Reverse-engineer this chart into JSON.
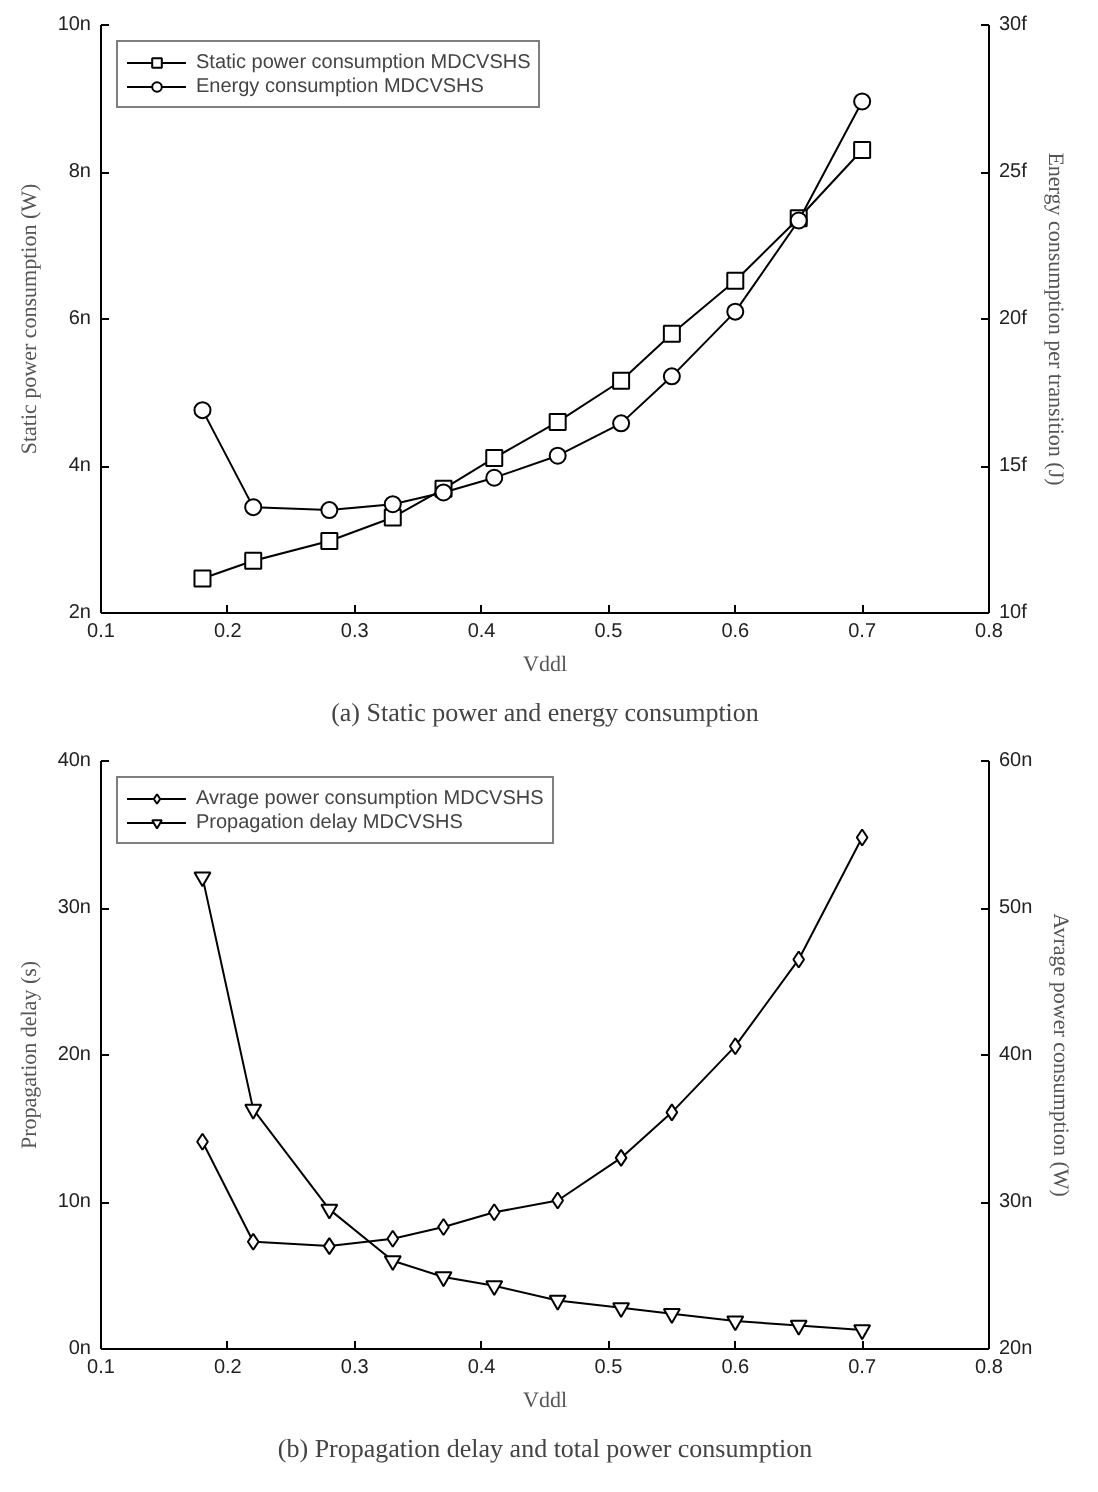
{
  "chart_data": [
    {
      "type": "line",
      "xlabel": "Vddl",
      "ylabel": "Static power consumption (W)",
      "y2label": "Energy consumption per transition (J)",
      "annotations": [
        "(a) Static power and energy consumption"
      ],
      "legend": "top left",
      "grid": false,
      "line_style": "solid",
      "xlim": [
        0.1,
        0.8
      ],
      "xticks": [
        0.1,
        0.2,
        0.3,
        0.4,
        0.5,
        0.6,
        0.7,
        0.8
      ],
      "ylim": [
        2,
        10
      ],
      "yticks": [
        {
          "value": 2,
          "label": "2n"
        },
        {
          "value": 4,
          "label": "4n"
        },
        {
          "value": 6,
          "label": "6n"
        },
        {
          "value": 8,
          "label": "8n"
        },
        {
          "value": 10,
          "label": "10n"
        }
      ],
      "y2lim": [
        10,
        30
      ],
      "y2ticks": [
        {
          "value": 10,
          "label": "10f"
        },
        {
          "value": 15,
          "label": "15f"
        },
        {
          "value": 20,
          "label": "20f"
        },
        {
          "value": 25,
          "label": "25f"
        },
        {
          "value": 30,
          "label": "30f"
        }
      ],
      "x": [
        0.18,
        0.22,
        0.28,
        0.33,
        0.37,
        0.41,
        0.46,
        0.51,
        0.55,
        0.6,
        0.65,
        0.7
      ],
      "series": [
        {
          "name": "Static power consumption MDCVSHS",
          "color": "#000000",
          "marker": "square",
          "values": [
            2.47,
            2.71,
            2.98,
            3.3,
            3.69,
            4.11,
            4.6,
            5.16,
            5.8,
            6.52,
            7.37,
            8.3
          ]
        },
        {
          "name": "Energy consumption MDCVSHS",
          "color": "#000000",
          "marker": "circle",
          "axis": "y2",
          "values": [
            16.9,
            13.6,
            13.5,
            13.7,
            14.1,
            14.6,
            15.35,
            16.45,
            18.05,
            20.25,
            23.35,
            27.4
          ]
        }
      ]
    },
    {
      "type": "line",
      "xlabel": "Vddl",
      "ylabel": "Propagation delay (s)",
      "y2label": "Avrage power consumption (W)",
      "annotations": [
        "(b) Propagation delay and total power consumption"
      ],
      "legend": "top left",
      "grid": false,
      "line_style": "solid",
      "xlim": [
        0.1,
        0.8
      ],
      "xticks": [
        0.1,
        0.2,
        0.3,
        0.4,
        0.5,
        0.6,
        0.7,
        0.8
      ],
      "ylim": [
        0,
        40
      ],
      "yticks": [
        {
          "value": 0,
          "label": "0n"
        },
        {
          "value": 10,
          "label": "10n"
        },
        {
          "value": 20,
          "label": "20n"
        },
        {
          "value": 30,
          "label": "30n"
        },
        {
          "value": 40,
          "label": "40n"
        }
      ],
      "y2lim": [
        20,
        60
      ],
      "y2ticks": [
        {
          "value": 20,
          "label": "20n"
        },
        {
          "value": 30,
          "label": "30n"
        },
        {
          "value": 40,
          "label": "40n"
        },
        {
          "value": 50,
          "label": "50n"
        },
        {
          "value": 60,
          "label": "60n"
        }
      ],
      "x": [
        0.18,
        0.22,
        0.28,
        0.33,
        0.37,
        0.41,
        0.46,
        0.51,
        0.55,
        0.6,
        0.65,
        0.7
      ],
      "series": [
        {
          "name": "Avrage power consumption MDCVSHS",
          "color": "#000000",
          "marker": "diamond",
          "axis": "y2",
          "values": [
            34.1,
            27.3,
            27.0,
            27.5,
            28.3,
            29.3,
            30.1,
            33.0,
            36.1,
            40.6,
            46.5,
            54.8
          ]
        },
        {
          "name": "Propagation delay MDCVSHS",
          "color": "#000000",
          "marker": "triangle",
          "values": [
            32.1,
            16.3,
            9.5,
            6.0,
            4.9,
            4.3,
            3.3,
            2.8,
            2.4,
            1.9,
            1.6,
            1.3
          ]
        }
      ]
    }
  ]
}
